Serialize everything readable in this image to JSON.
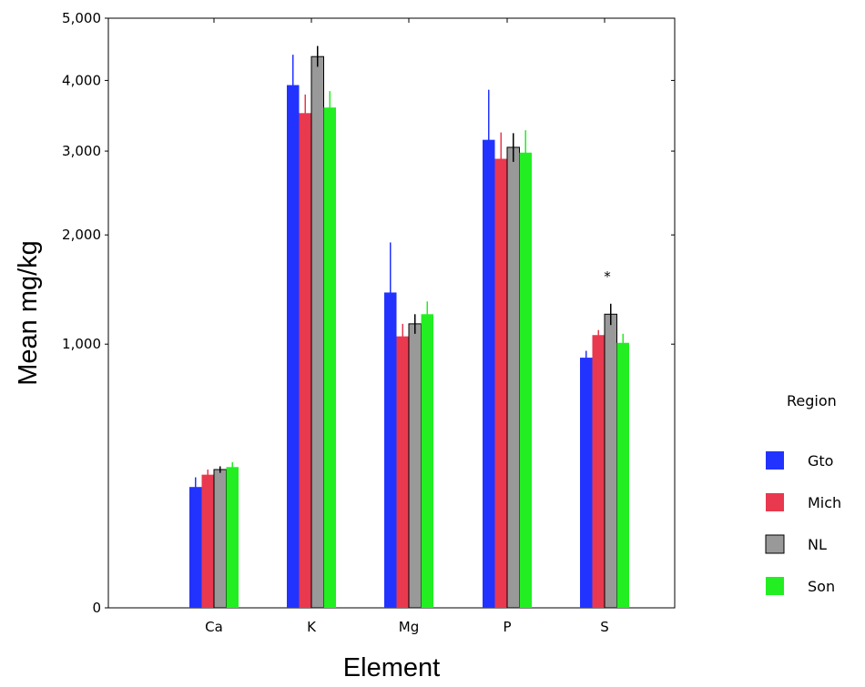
{
  "chart_data": {
    "type": "bar",
    "xlabel": "Element",
    "ylabel": "Mean mg/kg",
    "categories": [
      "Ca",
      "K",
      "Mg",
      "P",
      "S"
    ],
    "y_scale": "sqrt",
    "ylim": [
      0,
      5000
    ],
    "y_ticks": [
      0,
      1000,
      2000,
      3000,
      4000,
      5000
    ],
    "y_tick_labels": [
      "0",
      "1,000",
      "2,000",
      "3,000",
      "4,000",
      "5,000"
    ],
    "grid": false,
    "legend": {
      "title": "Region",
      "position": "right"
    },
    "series": [
      {
        "name": "Gto",
        "color": "#2233ff",
        "values": [
          210,
          3930,
          1430,
          3150,
          900
        ],
        "errors": [
          [
            175,
            245
          ],
          [
            3500,
            4400
          ],
          [
            960,
            1920
          ],
          [
            2560,
            3860
          ],
          [
            870,
            950
          ]
        ]
      },
      {
        "name": "Mich",
        "color": "#e8394f",
        "values": [
          255,
          3520,
          1060,
          2900,
          1070
        ],
        "errors": [
          [
            235,
            275
          ],
          [
            3250,
            3790
          ],
          [
            960,
            1160
          ],
          [
            2560,
            3250
          ],
          [
            1040,
            1110
          ]
        ]
      },
      {
        "name": "NL",
        "color": "#999999",
        "values": [
          275,
          4370,
          1160,
          3050,
          1240
        ],
        "errors": [
          [
            262,
            288
          ],
          [
            4210,
            4540
          ],
          [
            1080,
            1240
          ],
          [
            2860,
            3240
          ],
          [
            1150,
            1330
          ]
        ]
      },
      {
        "name": "Son",
        "color": "#22ee22",
        "values": [
          285,
          3600,
          1240,
          2980,
          1010
        ],
        "errors": [
          [
            265,
            305
          ],
          [
            3350,
            3840
          ],
          [
            1140,
            1350
          ],
          [
            2680,
            3280
          ],
          [
            940,
            1080
          ]
        ]
      }
    ],
    "annotations": [
      {
        "text": "*",
        "category": "S",
        "value": 1620
      }
    ]
  }
}
